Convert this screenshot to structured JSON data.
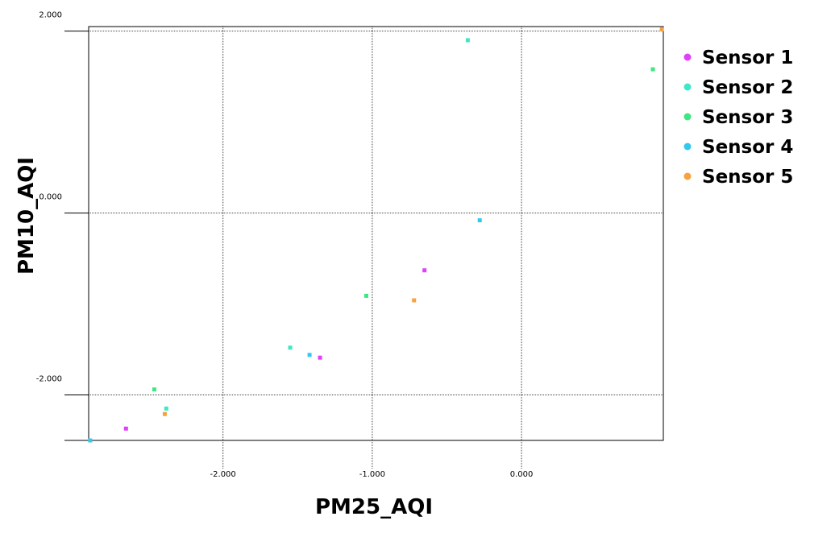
{
  "chart_data": {
    "type": "scatter",
    "xlabel": "PM25_AQI",
    "ylabel": "PM10_AQI",
    "xlim": [
      -2.9,
      0.95
    ],
    "ylim": [
      -2.5,
      2.05
    ],
    "xticks": [
      -2.0,
      -1.0,
      0.0
    ],
    "xtick_labels": [
      "-2.000",
      "-1.000",
      "0.000"
    ],
    "yticks": [
      2.0,
      0.0,
      -2.0
    ],
    "ytick_labels": [
      "2.000",
      "0.000",
      "-2.000"
    ],
    "grid": true,
    "legend_position": "right",
    "series": [
      {
        "name": "Sensor 1",
        "color": "#e040fb",
        "points": [
          [
            -2.65,
            -2.37
          ],
          [
            -1.35,
            -1.59
          ],
          [
            -0.65,
            -0.63
          ]
        ]
      },
      {
        "name": "Sensor 2",
        "color": "#3ee8c6",
        "points": [
          [
            -0.36,
            1.9
          ],
          [
            -1.55,
            -1.48
          ],
          [
            -2.38,
            -2.15
          ]
        ]
      },
      {
        "name": "Sensor 3",
        "color": "#3de882",
        "points": [
          [
            0.88,
            1.58
          ],
          [
            -2.46,
            -1.94
          ],
          [
            -1.04,
            -0.91
          ]
        ]
      },
      {
        "name": "Sensor 4",
        "color": "#35c8ef",
        "points": [
          [
            -0.28,
            -0.08
          ],
          [
            -1.42,
            -1.56
          ],
          [
            -2.89,
            -2.5
          ]
        ]
      },
      {
        "name": "Sensor 5",
        "color": "#f7a23e",
        "points": [
          [
            0.94,
            2.02
          ],
          [
            -0.72,
            -0.96
          ],
          [
            -2.39,
            -2.21
          ]
        ]
      }
    ]
  }
}
